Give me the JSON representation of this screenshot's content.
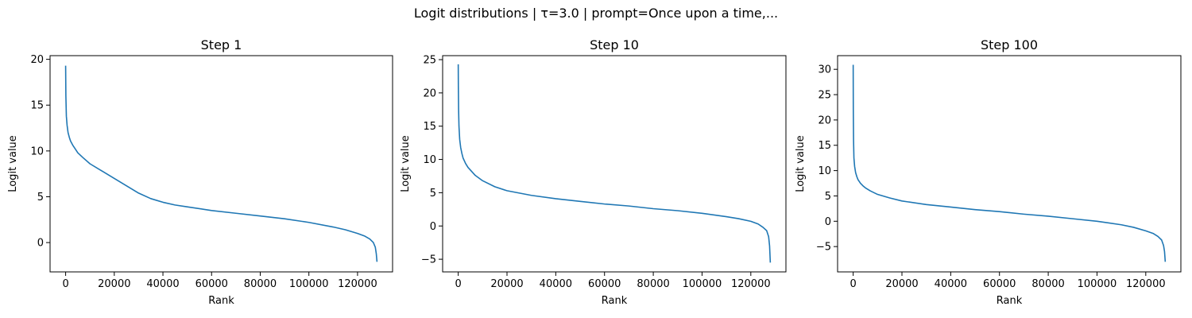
{
  "figure": {
    "suptitle": "Logit distributions | τ=3.0 | prompt=Once upon a time,..."
  },
  "chart_data": [
    {
      "type": "line",
      "title": "Step 1",
      "xlabel": "Rank",
      "ylabel": "Logit value",
      "xlim": [
        -6400,
        134400
      ],
      "ylim": [
        -3.2,
        20.4
      ],
      "xticks": [
        0,
        20000,
        40000,
        60000,
        80000,
        100000,
        120000
      ],
      "yticks": [
        0,
        5,
        10,
        15,
        20
      ],
      "grid": false,
      "series": [
        {
          "name": "logits",
          "color": "#1f77b4",
          "x": [
            0,
            100,
            300,
            600,
            1000,
            1500,
            2000,
            3000,
            4000,
            5000,
            7000,
            10000,
            15000,
            20000,
            25000,
            30000,
            35000,
            40000,
            45000,
            50000,
            60000,
            70000,
            80000,
            90000,
            100000,
            110000,
            115000,
            120000,
            123000,
            125000,
            126500,
            127300,
            127700,
            128000
          ],
          "y": [
            19.3,
            16.0,
            13.8,
            12.8,
            12.0,
            11.5,
            11.1,
            10.6,
            10.2,
            9.8,
            9.3,
            8.6,
            7.8,
            7.0,
            6.2,
            5.4,
            4.8,
            4.4,
            4.1,
            3.9,
            3.5,
            3.2,
            2.9,
            2.6,
            2.2,
            1.7,
            1.4,
            1.0,
            0.7,
            0.4,
            0.0,
            -0.5,
            -1.2,
            -2.1
          ]
        }
      ]
    },
    {
      "type": "line",
      "title": "Step 10",
      "xlabel": "Rank",
      "ylabel": "Logit value",
      "xlim": [
        -6400,
        134400
      ],
      "ylim": [
        -6.9,
        25.6
      ],
      "xticks": [
        0,
        20000,
        40000,
        60000,
        80000,
        100000,
        120000
      ],
      "yticks": [
        -5,
        0,
        5,
        10,
        15,
        20,
        25
      ],
      "grid": false,
      "series": [
        {
          "name": "logits",
          "color": "#1f77b4",
          "x": [
            0,
            50,
            150,
            300,
            600,
            1000,
            1500,
            2000,
            3000,
            4000,
            5000,
            7000,
            10000,
            15000,
            20000,
            30000,
            40000,
            50000,
            60000,
            70000,
            80000,
            90000,
            100000,
            110000,
            115000,
            120000,
            123000,
            125000,
            126500,
            127300,
            127700,
            128000
          ],
          "y": [
            24.3,
            21.0,
            17.5,
            15.0,
            13.0,
            11.8,
            10.9,
            10.2,
            9.4,
            8.8,
            8.4,
            7.6,
            6.8,
            5.9,
            5.3,
            4.6,
            4.1,
            3.7,
            3.3,
            3.0,
            2.6,
            2.3,
            1.9,
            1.4,
            1.1,
            0.7,
            0.3,
            -0.2,
            -0.7,
            -1.6,
            -3.0,
            -5.5
          ]
        }
      ]
    },
    {
      "type": "line",
      "title": "Step 100",
      "xlabel": "Rank",
      "ylabel": "Logit value",
      "xlim": [
        -6400,
        134400
      ],
      "ylim": [
        -10.0,
        32.7
      ],
      "xticks": [
        0,
        20000,
        40000,
        60000,
        80000,
        100000,
        120000
      ],
      "yticks": [
        -5,
        0,
        5,
        10,
        15,
        20,
        25,
        30
      ],
      "grid": false,
      "series": [
        {
          "name": "logits",
          "color": "#1f77b4",
          "x": [
            0,
            50,
            150,
            300,
            600,
            1000,
            1500,
            2000,
            3000,
            4000,
            5000,
            7000,
            10000,
            15000,
            20000,
            30000,
            40000,
            50000,
            60000,
            70000,
            80000,
            90000,
            100000,
            110000,
            115000,
            120000,
            123000,
            125000,
            126500,
            127300,
            127700,
            128000
          ],
          "y": [
            30.9,
            22.0,
            16.0,
            12.5,
            10.8,
            9.6,
            8.8,
            8.2,
            7.5,
            7.0,
            6.6,
            6.0,
            5.3,
            4.6,
            4.0,
            3.3,
            2.8,
            2.3,
            1.9,
            1.4,
            1.0,
            0.5,
            0.0,
            -0.7,
            -1.2,
            -1.9,
            -2.4,
            -3.0,
            -3.7,
            -4.8,
            -6.0,
            -8.0
          ]
        }
      ]
    }
  ]
}
